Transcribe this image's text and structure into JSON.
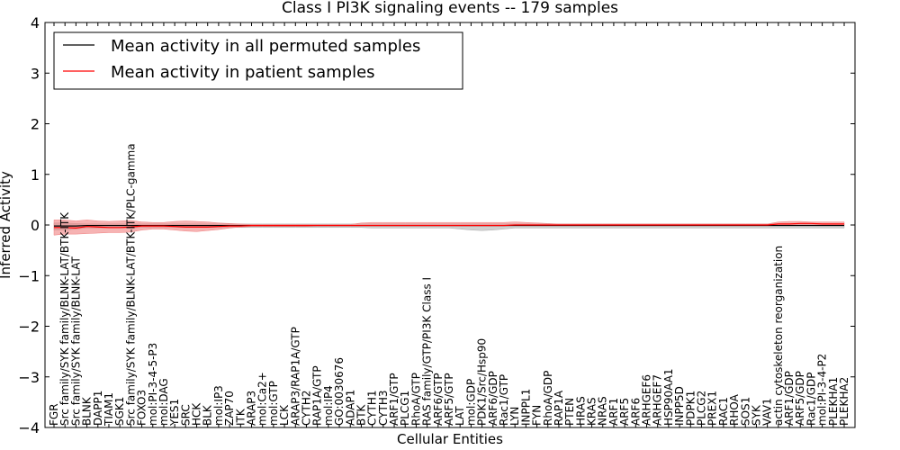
{
  "chart_data": {
    "type": "line",
    "title": "Class I PI3K signaling events -- 179 samples",
    "xlabel": "Cellular Entities",
    "ylabel": "Inferred Activity",
    "ylim": [
      -4,
      4
    ],
    "yticks": [
      -4,
      -3,
      -2,
      -1,
      0,
      1,
      2,
      3,
      4
    ],
    "ytick_labels": [
      "−4",
      "−3",
      "−2",
      "−1",
      "0",
      "1",
      "2",
      "3",
      "4"
    ],
    "grid": false,
    "legend_position": "top-left",
    "categories": [
      "FGR",
      "Src family/SYK family/BLNK-LAT/BTK-ITK",
      "Src family/SYK family/BLNK-LAT",
      "BLNK",
      "DAPP1",
      "TIAM1",
      "SGK1",
      "Src family/SYK family/BLNK-LAT/BTK-ITK/PLC-gamma",
      "FOXO3",
      "mol:PI-3-4-5-P3",
      "mol:DAG",
      "YES1",
      "SRC",
      "HCK",
      "BLK",
      "mol:IP3",
      "ZAP70",
      "ITK",
      "ARAP3",
      "mol:Ca2+",
      "mol:GTP",
      "LCK",
      "ARAP3/RAP1A/GTP",
      "CYTH2",
      "RAP1A/GTP",
      "mol:IP4",
      "GO:0030676",
      "ADAP1",
      "BTK",
      "CYTH1",
      "CYTH3",
      "ARF1/GTP",
      "PLCG1",
      "RhoA/GTP",
      "RAS family/GTP/PI3K Class I",
      "ARF6/GTP",
      "ARF5/GTP",
      "LAT",
      "mol:GDP",
      "PDK1/Src/Hsp90",
      "ARF6/GDP",
      "Rac1/GTP",
      "LYN",
      "INPPL1",
      "FYN",
      "RhoA/GDP",
      "RAP1A",
      "PTEN",
      "HRAS",
      "KRAS",
      "NRAS",
      "ARF1",
      "ARF5",
      "ARF6",
      "ARHGEF6",
      "ARHGEF7",
      "HSP90AA1",
      "INPP5D",
      "PDPK1",
      "PLCG2",
      "PREX1",
      "RAC1",
      "RHOA",
      "SOS1",
      "SYK",
      "VAV1",
      "actin cytoskeleton reorganization",
      "ARF1/GDP",
      "ARF5/GDP",
      "Rac1/GDP",
      "mol:PI-3-4-P2",
      "PLEKHA1",
      "PLEKHA2"
    ],
    "series": [
      {
        "name": "Mean activity in all permuted samples",
        "color": "#000000",
        "values": [
          -0.02,
          -0.02,
          -0.02,
          -0.01,
          -0.01,
          -0.01,
          -0.01,
          -0.01,
          -0.01,
          -0.01,
          -0.01,
          -0.01,
          -0.01,
          -0.01,
          -0.01,
          -0.01,
          -0.01,
          -0.01,
          -0.01,
          -0.01,
          -0.01,
          -0.01,
          -0.01,
          -0.01,
          -0.01,
          -0.01,
          -0.01,
          -0.01,
          -0.01,
          -0.01,
          -0.01,
          -0.01,
          -0.01,
          -0.01,
          -0.01,
          -0.01,
          -0.01,
          -0.01,
          -0.01,
          -0.01,
          -0.01,
          -0.01,
          -0.01,
          -0.01,
          -0.01,
          -0.01,
          -0.01,
          -0.01,
          -0.01,
          -0.01,
          -0.01,
          -0.01,
          -0.01,
          -0.01,
          -0.01,
          -0.01,
          -0.01,
          -0.01,
          -0.01,
          -0.01,
          -0.01,
          -0.01,
          -0.01,
          -0.01,
          -0.01,
          -0.01,
          -0.01,
          -0.01,
          -0.01,
          -0.01,
          -0.01,
          -0.01,
          -0.01
        ]
      },
      {
        "name": "Mean activity in patient samples",
        "color": "#ff0000",
        "values": [
          -0.05,
          -0.05,
          -0.06,
          -0.03,
          -0.04,
          -0.05,
          -0.05,
          -0.04,
          -0.02,
          -0.02,
          -0.02,
          -0.03,
          -0.04,
          -0.04,
          -0.04,
          -0.03,
          -0.02,
          -0.02,
          -0.01,
          -0.01,
          -0.01,
          -0.01,
          -0.01,
          -0.01,
          -0.01,
          -0.01,
          -0.01,
          -0.01,
          -0.01,
          -0.01,
          -0.01,
          -0.01,
          -0.01,
          -0.01,
          -0.01,
          -0.01,
          -0.01,
          -0.01,
          -0.01,
          -0.01,
          -0.01,
          -0.01,
          0.0,
          0.0,
          0.0,
          0.0,
          0.0,
          0.0,
          0.0,
          0.0,
          0.0,
          0.0,
          0.0,
          0.0,
          0.0,
          0.0,
          0.0,
          0.0,
          0.0,
          0.0,
          0.0,
          0.0,
          0.0,
          0.0,
          0.0,
          0.0,
          0.02,
          0.02,
          0.03,
          0.03,
          0.02,
          0.02,
          0.02
        ]
      }
    ],
    "bands": [
      {
        "name": "Permuted samples spread",
        "color": "#b0b0b0",
        "lower": [
          -0.1,
          -0.1,
          -0.08,
          -0.06,
          -0.06,
          -0.06,
          -0.06,
          -0.06,
          -0.05,
          -0.05,
          -0.05,
          -0.05,
          -0.05,
          -0.05,
          -0.05,
          -0.05,
          -0.05,
          -0.05,
          -0.05,
          -0.05,
          -0.05,
          -0.05,
          -0.05,
          -0.05,
          -0.05,
          -0.05,
          -0.05,
          -0.05,
          -0.05,
          -0.06,
          -0.06,
          -0.06,
          -0.06,
          -0.06,
          -0.06,
          -0.06,
          -0.06,
          -0.08,
          -0.1,
          -0.11,
          -0.1,
          -0.08,
          -0.06,
          -0.06,
          -0.06,
          -0.06,
          -0.06,
          -0.06,
          -0.06,
          -0.06,
          -0.06,
          -0.06,
          -0.06,
          -0.06,
          -0.06,
          -0.06,
          -0.06,
          -0.06,
          -0.06,
          -0.06,
          -0.06,
          -0.06,
          -0.06,
          -0.06,
          -0.06,
          -0.06,
          -0.06,
          -0.06,
          -0.06,
          -0.06,
          -0.06,
          -0.06,
          -0.06
        ],
        "upper": [
          0.04,
          0.04,
          0.03,
          0.02,
          0.02,
          0.02,
          0.02,
          0.02,
          0.02,
          0.02,
          0.02,
          0.02,
          0.02,
          0.02,
          0.02,
          0.02,
          0.02,
          0.02,
          0.02,
          0.02,
          0.02,
          0.02,
          0.02,
          0.02,
          0.02,
          0.02,
          0.02,
          0.02,
          0.02,
          0.02,
          0.02,
          0.02,
          0.02,
          0.02,
          0.02,
          0.02,
          0.02,
          0.02,
          0.02,
          0.02,
          0.02,
          0.02,
          0.02,
          0.02,
          0.02,
          0.02,
          0.02,
          0.02,
          0.02,
          0.02,
          0.02,
          0.02,
          0.02,
          0.02,
          0.02,
          0.02,
          0.02,
          0.02,
          0.02,
          0.02,
          0.02,
          0.02,
          0.02,
          0.02,
          0.02,
          0.02,
          0.02,
          0.02,
          0.02,
          0.02,
          0.02,
          0.02,
          0.02
        ]
      },
      {
        "name": "Patient samples spread",
        "color": "#f08080",
        "lower": [
          -0.2,
          -0.18,
          -0.18,
          -0.17,
          -0.16,
          -0.15,
          -0.15,
          -0.14,
          -0.1,
          -0.08,
          -0.08,
          -0.1,
          -0.12,
          -0.13,
          -0.11,
          -0.09,
          -0.06,
          -0.04,
          -0.03,
          -0.03,
          -0.03,
          -0.03,
          -0.03,
          -0.03,
          -0.02,
          -0.02,
          -0.02,
          -0.02,
          -0.02,
          -0.02,
          -0.02,
          -0.02,
          -0.02,
          -0.02,
          -0.02,
          -0.02,
          -0.02,
          -0.02,
          -0.02,
          -0.02,
          -0.02,
          -0.02,
          -0.01,
          -0.01,
          -0.01,
          -0.01,
          -0.01,
          -0.01,
          -0.01,
          -0.01,
          -0.01,
          -0.01,
          -0.01,
          -0.01,
          -0.01,
          -0.01,
          -0.01,
          -0.01,
          -0.01,
          -0.01,
          -0.01,
          -0.01,
          -0.01,
          -0.01,
          -0.01,
          -0.01,
          -0.01,
          -0.01,
          -0.01,
          -0.01,
          -0.01,
          -0.01,
          -0.01
        ],
        "upper": [
          0.1,
          0.1,
          0.08,
          0.1,
          0.08,
          0.07,
          0.08,
          0.09,
          0.06,
          0.05,
          0.05,
          0.07,
          0.08,
          0.07,
          0.06,
          0.04,
          0.03,
          0.02,
          0.01,
          0.01,
          0.01,
          0.01,
          0.01,
          0.01,
          0.01,
          0.01,
          0.01,
          0.01,
          0.04,
          0.05,
          0.05,
          0.05,
          0.05,
          0.05,
          0.05,
          0.05,
          0.05,
          0.05,
          0.05,
          0.05,
          0.05,
          0.05,
          0.06,
          0.05,
          0.04,
          0.03,
          0.02,
          0.02,
          0.02,
          0.02,
          0.02,
          0.02,
          0.02,
          0.02,
          0.02,
          0.02,
          0.02,
          0.02,
          0.02,
          0.02,
          0.02,
          0.02,
          0.02,
          0.02,
          0.02,
          0.02,
          0.06,
          0.07,
          0.07,
          0.06,
          0.06,
          0.06,
          0.06
        ]
      }
    ]
  }
}
